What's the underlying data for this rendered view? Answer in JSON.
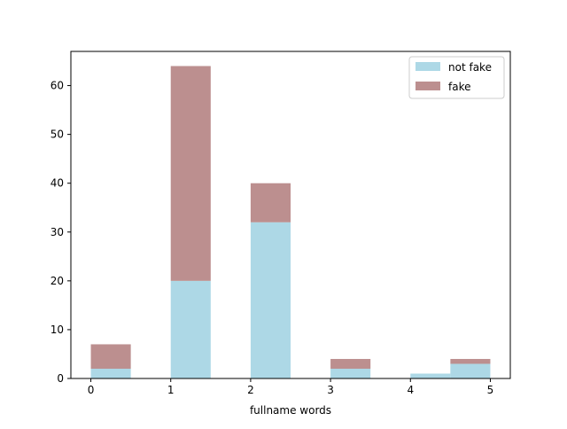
{
  "chart_data": {
    "type": "bar",
    "stacked": true,
    "title": "",
    "xlabel": "fullname words",
    "ylabel": "",
    "bin_start": [
      0,
      0.5,
      1,
      1.5,
      2,
      2.5,
      3,
      3.5,
      4,
      4.5
    ],
    "bin_width": 0.5,
    "xlim": [
      -0.25,
      5.25
    ],
    "ylim": [
      0,
      67
    ],
    "xticks": [
      0,
      1,
      2,
      3,
      4,
      5
    ],
    "yticks": [
      0,
      10,
      20,
      30,
      40,
      50,
      60
    ],
    "series": [
      {
        "name": "not fake",
        "color": "#add8e6",
        "values": [
          2,
          0,
          20,
          0,
          32,
          0,
          2,
          0,
          1,
          3
        ]
      },
      {
        "name": "fake",
        "color": "#bc8f8f",
        "values": [
          5,
          0,
          44,
          0,
          8,
          0,
          2,
          0,
          0,
          1
        ]
      }
    ],
    "legend": {
      "position": "upper right"
    },
    "grid": false
  }
}
